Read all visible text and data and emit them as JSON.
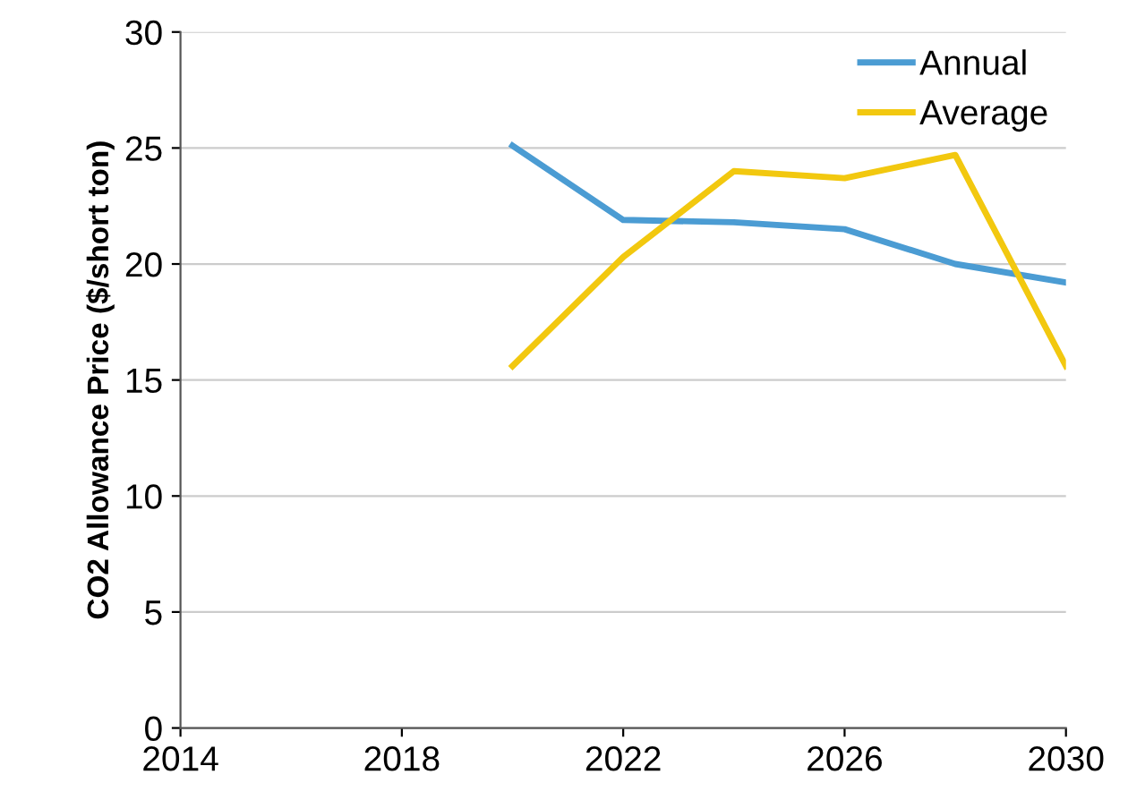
{
  "chart_data": {
    "type": "line",
    "ylabel": "CO2 Allowance Price ($/short ton)",
    "x": [
      2020,
      2022,
      2024,
      2026,
      2028,
      2030
    ],
    "series": [
      {
        "name": "Annual",
        "color": "#4b9cd3",
        "values": [
          25.1,
          21.9,
          21.8,
          21.5,
          20.0,
          19.2
        ]
      },
      {
        "name": "Average",
        "color": "#f2c80f",
        "values": [
          15.6,
          20.3,
          24.0,
          23.7,
          24.7,
          15.6
        ]
      }
    ],
    "xlim": [
      2014,
      2030
    ],
    "xticks": [
      2014,
      2018,
      2022,
      2026,
      2030
    ],
    "ylim": [
      0,
      30
    ],
    "yticks": [
      0,
      5,
      10,
      15,
      20,
      25,
      30
    ],
    "grid": "y",
    "legend": "top right",
    "marker": "none",
    "line_style": "solid"
  }
}
